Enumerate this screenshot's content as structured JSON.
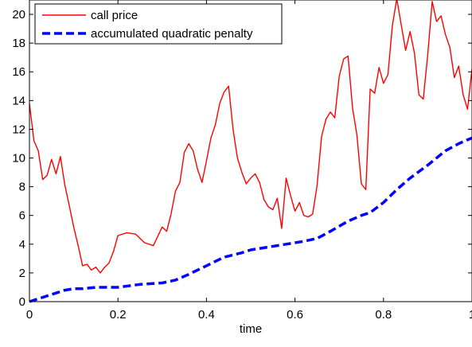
{
  "chart_data": {
    "type": "line",
    "title": "",
    "xlabel": "time",
    "ylabel": "",
    "xlim": [
      0,
      1
    ],
    "ylim": [
      0,
      21
    ],
    "xticks": [
      0,
      0.2,
      0.4,
      0.6,
      0.8,
      1
    ],
    "xtick_labels": [
      "0",
      "0.2",
      "0.4",
      "0.6",
      "0.8",
      "1"
    ],
    "yticks": [
      0,
      2,
      4,
      6,
      8,
      10,
      12,
      14,
      16,
      18,
      20
    ],
    "ytick_labels": [
      "0",
      "2",
      "4",
      "6",
      "8",
      "10",
      "12",
      "14",
      "16",
      "18",
      "20"
    ],
    "grid": false,
    "legend_position": "top-left",
    "series": [
      {
        "name": "call price",
        "color": "#ff0000",
        "style": "solid",
        "x": [
          0,
          0.01,
          0.02,
          0.03,
          0.04,
          0.05,
          0.06,
          0.07,
          0.08,
          0.09,
          0.1,
          0.11,
          0.12,
          0.13,
          0.14,
          0.15,
          0.16,
          0.17,
          0.18,
          0.19,
          0.2,
          0.22,
          0.24,
          0.26,
          0.28,
          0.3,
          0.31,
          0.32,
          0.33,
          0.34,
          0.35,
          0.36,
          0.37,
          0.38,
          0.39,
          0.4,
          0.41,
          0.42,
          0.43,
          0.44,
          0.45,
          0.46,
          0.47,
          0.48,
          0.49,
          0.5,
          0.51,
          0.52,
          0.53,
          0.54,
          0.55,
          0.56,
          0.57,
          0.58,
          0.59,
          0.6,
          0.61,
          0.62,
          0.63,
          0.64,
          0.65,
          0.66,
          0.67,
          0.68,
          0.69,
          0.7,
          0.71,
          0.72,
          0.73,
          0.74,
          0.75,
          0.76,
          0.77,
          0.78,
          0.79,
          0.8,
          0.81,
          0.82,
          0.83,
          0.84,
          0.85,
          0.86,
          0.87,
          0.88,
          0.89,
          0.9,
          0.91,
          0.92,
          0.93,
          0.94,
          0.95,
          0.96,
          0.97,
          0.98,
          0.99,
          1.0
        ],
        "y": [
          13.8,
          11.2,
          10.5,
          8.5,
          8.8,
          9.9,
          8.9,
          10.1,
          8.1,
          6.7,
          5.2,
          3.9,
          2.5,
          2.6,
          2.2,
          2.4,
          2.0,
          2.4,
          2.7,
          3.5,
          4.6,
          4.8,
          4.7,
          4.1,
          3.9,
          5.2,
          4.9,
          6.1,
          7.7,
          8.3,
          10.4,
          11.0,
          10.5,
          9.2,
          8.3,
          9.8,
          11.4,
          12.3,
          13.8,
          14.6,
          15.0,
          12.0,
          10.0,
          9.0,
          8.2,
          8.6,
          8.9,
          8.3,
          7.1,
          6.6,
          6.4,
          7.2,
          5.1,
          8.6,
          7.4,
          6.3,
          6.9,
          6.0,
          5.9,
          6.1,
          8.1,
          11.5,
          12.7,
          13.2,
          12.8,
          15.7,
          16.9,
          17.1,
          13.5,
          11.6,
          8.2,
          7.8,
          14.8,
          14.5,
          16.3,
          15.2,
          15.8,
          19.2,
          21.1,
          19.3,
          17.5,
          18.8,
          17.3,
          14.4,
          14.1,
          17.2,
          20.9,
          19.5,
          19.9,
          18.6,
          17.7,
          15.6,
          16.4,
          14.4,
          13.4,
          16.2
        ]
      },
      {
        "name": "accumulated quadratic penalty",
        "color": "#0000ff",
        "style": "dashed",
        "x": [
          0,
          0.02,
          0.04,
          0.06,
          0.08,
          0.1,
          0.12,
          0.15,
          0.2,
          0.25,
          0.3,
          0.33,
          0.36,
          0.4,
          0.44,
          0.48,
          0.5,
          0.54,
          0.58,
          0.62,
          0.65,
          0.68,
          0.72,
          0.75,
          0.77,
          0.8,
          0.83,
          0.86,
          0.9,
          0.94,
          0.97,
          1.0
        ],
        "y": [
          0,
          0.2,
          0.4,
          0.6,
          0.8,
          0.9,
          0.9,
          1.0,
          1.0,
          1.2,
          1.3,
          1.5,
          1.9,
          2.5,
          3.1,
          3.4,
          3.6,
          3.8,
          4.0,
          4.2,
          4.4,
          4.9,
          5.6,
          6.0,
          6.2,
          6.9,
          7.8,
          8.6,
          9.5,
          10.5,
          11.0,
          11.4
        ]
      }
    ]
  }
}
